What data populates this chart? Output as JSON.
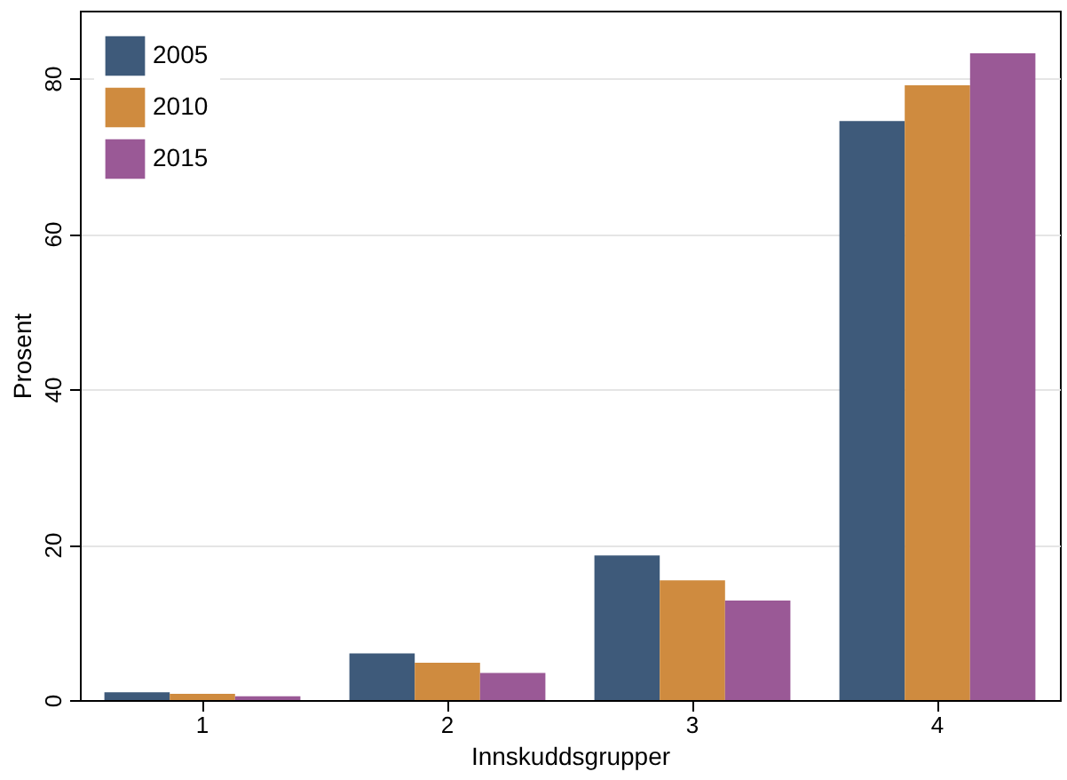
{
  "chart_data": {
    "type": "bar",
    "xlabel": "Innskuddsgrupper",
    "ylabel": "Prosent",
    "categories": [
      "1",
      "2",
      "3",
      "4"
    ],
    "series": [
      {
        "name": "2005",
        "color": "#3e5a7a",
        "values": [
          1.0,
          6.0,
          18.6,
          74.5
        ]
      },
      {
        "name": "2010",
        "color": "#cf8b3f",
        "values": [
          0.8,
          4.8,
          15.4,
          79.1
        ]
      },
      {
        "name": "2015",
        "color": "#9a5996",
        "values": [
          0.5,
          3.5,
          12.8,
          83.2
        ]
      }
    ],
    "ylim": [
      0,
      88.7
    ],
    "yticks": [
      0,
      20,
      40,
      60,
      80
    ],
    "grid": "y",
    "legend": "top left"
  }
}
